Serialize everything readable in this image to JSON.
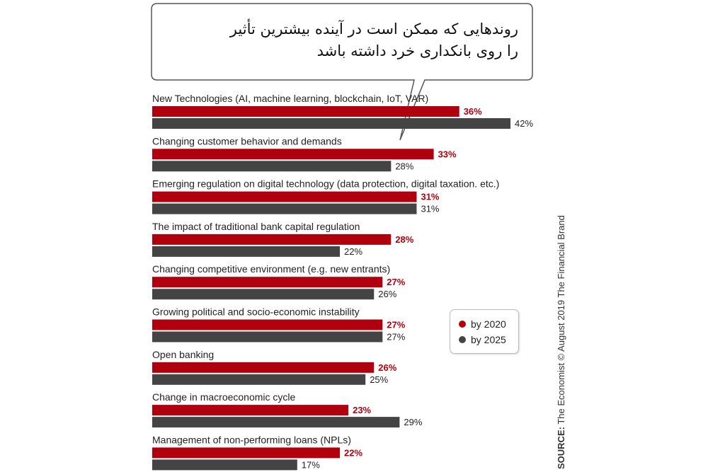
{
  "callout": {
    "line1": "روندهایی که ممکن است در آینده بیشترین تأثیر",
    "line2": "را روی بانکداری خرد داشته باشد"
  },
  "legend": {
    "items": [
      {
        "label": "by 2020",
        "color": "#b0000e"
      },
      {
        "label": "by 2025",
        "color": "#444444"
      }
    ]
  },
  "source": {
    "prefix": "SOURCE:",
    "text": "The Economist © August 2019 The Financial Brand"
  },
  "colors": {
    "series_2020": "#b0000e",
    "series_2025": "#444444"
  },
  "chart_data": {
    "type": "bar",
    "orientation": "horizontal",
    "categories": [
      "New Technologies (AI, machine learning, blockchain, IoT, VAR)",
      "Changing customer behavior and demands",
      "Emerging regulation on digital technology (data protection, digital taxation. etc.)",
      "The impact of traditional bank capital regulation",
      "Changing competitive environment (e.g. new entrants)",
      "Growing political and socio-economic instability",
      "Open banking",
      "Change in macroeconomic cycle",
      "Management of non-performing loans (NPLs)"
    ],
    "series": [
      {
        "name": "by 2020",
        "values": [
          36,
          33,
          31,
          28,
          27,
          27,
          26,
          23,
          22
        ],
        "labels": [
          "36%",
          "33%",
          "31%",
          "28%",
          "27%",
          "27%",
          "26%",
          "23%",
          "22%"
        ]
      },
      {
        "name": "by 2025",
        "values": [
          42,
          28,
          31,
          22,
          26,
          27,
          25,
          29,
          17
        ],
        "labels": [
          "42%",
          "28%",
          "31%",
          "22%",
          "26%",
          "27%",
          "25%",
          "29%",
          "17%"
        ]
      }
    ],
    "unit": "%",
    "xlim": [
      0,
      42
    ],
    "grid": false,
    "legend_position": "right"
  }
}
